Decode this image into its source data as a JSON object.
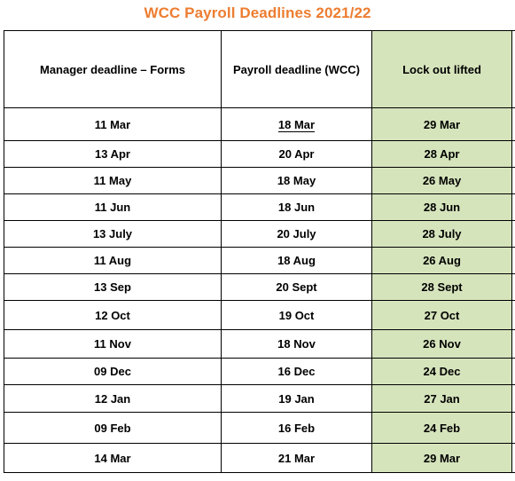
{
  "title": "WCC Payroll Deadlines 2021/22",
  "colors": {
    "title": "#ED7D31",
    "lockout_column": "#D6E4BC",
    "border": "#000000"
  },
  "headers": {
    "manager_deadline": "Manager deadline – Forms",
    "payroll_deadline": "Payroll deadline (WCC)",
    "lockout_lifted": "Lock out lifted"
  },
  "rows": [
    {
      "manager": "11 Mar",
      "payroll": "18  Mar",
      "lockout": "29 Mar"
    },
    {
      "manager": "13 Apr",
      "payroll": "20 Apr",
      "lockout": "28 Apr"
    },
    {
      "manager": "11 May",
      "payroll": "18 May",
      "lockout": "26 May"
    },
    {
      "manager": "11 Jun",
      "payroll": "18 Jun",
      "lockout": "28 Jun"
    },
    {
      "manager": "13 July",
      "payroll": "20 July",
      "lockout": "28 July"
    },
    {
      "manager": "11 Aug",
      "payroll": "18 Aug",
      "lockout": "26 Aug"
    },
    {
      "manager": "13 Sep",
      "payroll": "20 Sept",
      "lockout": "28 Sept"
    },
    {
      "manager": "12 Oct",
      "payroll": "19 Oct",
      "lockout": "27 Oct"
    },
    {
      "manager": "11 Nov",
      "payroll": "18 Nov",
      "lockout": "26 Nov"
    },
    {
      "manager": "09 Dec",
      "payroll": "16 Dec",
      "lockout": "24 Dec"
    },
    {
      "manager": "12 Jan",
      "payroll": "19 Jan",
      "lockout": "27 Jan"
    },
    {
      "manager": "09 Feb",
      "payroll": "16 Feb",
      "lockout": "24 Feb"
    },
    {
      "manager": "14 Mar",
      "payroll": "21 Mar",
      "lockout": "29 Mar"
    }
  ]
}
